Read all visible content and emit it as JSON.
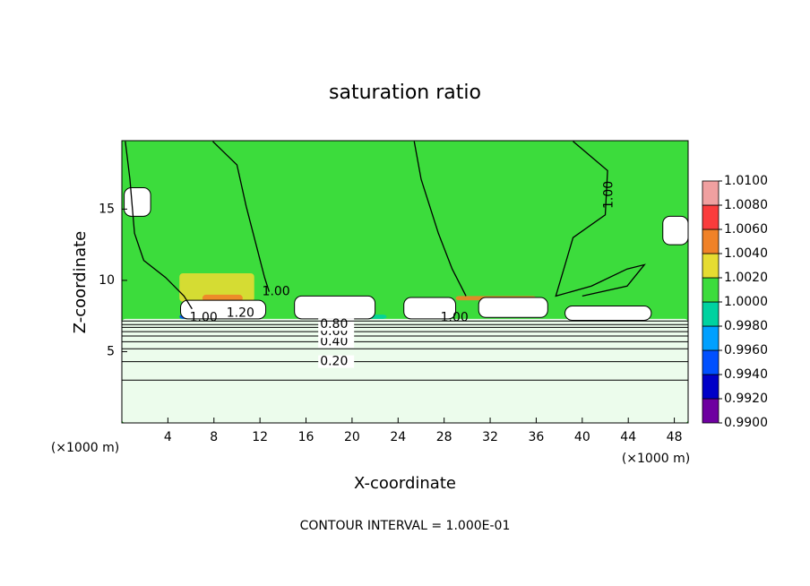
{
  "chart_data": {
    "type": "contour",
    "title": "saturation ratio",
    "x_label": "X-coordinate",
    "y_label": "Z-coordinate",
    "x_unit": "(×1000 m)",
    "footer": "CONTOUR INTERVAL = 1.000E-01",
    "xlim": [
      0,
      49.2
    ],
    "ylim": [
      0,
      19.8
    ],
    "xticks": [
      4,
      8,
      12,
      16,
      20,
      24,
      28,
      32,
      36,
      40,
      44,
      48
    ],
    "yticks": [
      5,
      10,
      15
    ],
    "background": 1.001,
    "colorbar": {
      "ticks": [
        {
          "value": 0.99,
          "label": "0.9900"
        },
        {
          "value": 0.992,
          "label": "0.9920"
        },
        {
          "value": 0.994,
          "label": "0.9940"
        },
        {
          "value": 0.996,
          "label": "0.9960"
        },
        {
          "value": 0.998,
          "label": "0.9980"
        },
        {
          "value": 1.0,
          "label": "1.0000"
        },
        {
          "value": 1.002,
          "label": "1.0020"
        },
        {
          "value": 1.004,
          "label": "1.0040"
        },
        {
          "value": 1.006,
          "label": "1.0060"
        },
        {
          "value": 1.008,
          "label": "1.0080"
        },
        {
          "value": 1.01,
          "label": "1.0100"
        }
      ],
      "colors": [
        "#6e00a0",
        "#0000c8",
        "#0050ff",
        "#00a0ff",
        "#00d2a0",
        "#3cdc3c",
        "#e6dc32",
        "#f08228",
        "#fa3c3c",
        "#f0a0a0"
      ]
    },
    "patches": [
      {
        "x0": 0,
        "x1": 49.2,
        "z0": 0,
        "z1": 7.3,
        "value": 0.5
      },
      {
        "x0": 5,
        "x1": 11.5,
        "z0": 8.5,
        "z1": 10.5,
        "value": 1.003
      },
      {
        "x0": 7,
        "x1": 10.5,
        "z0": 8.5,
        "z1": 9.0,
        "value": 1.005
      },
      {
        "x0": 29,
        "x1": 36,
        "z0": 8.6,
        "z1": 8.9,
        "value": 1.005
      },
      {
        "x0": 5,
        "x1": 8,
        "z0": 7.3,
        "z1": 7.6,
        "value": 0.995
      },
      {
        "x0": 19,
        "x1": 23,
        "z0": 7.3,
        "z1": 7.6,
        "value": 0.999
      },
      {
        "x0": 5.1,
        "x1": 12.5,
        "z0": 7.3,
        "z1": 8.6,
        "value": 1.2
      },
      {
        "x0": 15,
        "x1": 22,
        "z0": 7.3,
        "z1": 8.9,
        "value": 1.2
      },
      {
        "x0": 24.5,
        "x1": 29,
        "z0": 7.3,
        "z1": 8.8,
        "value": 1.05
      },
      {
        "x0": 31,
        "x1": 37,
        "z0": 7.4,
        "z1": 8.8,
        "value": 1.2
      },
      {
        "x0": 38.5,
        "x1": 46,
        "z0": 7.2,
        "z1": 8.2,
        "value": 1.05
      },
      {
        "x0": 0.2,
        "x1": 2.5,
        "z0": 14.5,
        "z1": 16.5,
        "value": 1.2
      },
      {
        "x0": 47,
        "x1": 49.2,
        "z0": 12.5,
        "z1": 14.5,
        "value": 1.2
      }
    ],
    "contours": [
      {
        "z": 3.0
      },
      {
        "z": 4.3,
        "label": "0.20"
      },
      {
        "z": 5.2
      },
      {
        "z": 5.7,
        "label": "0.40"
      },
      {
        "z": 6.1
      },
      {
        "z": 6.4,
        "label": "0.60"
      },
      {
        "z": 6.7
      },
      {
        "z": 6.9,
        "label": "0.80"
      },
      {
        "z": 7.15
      }
    ],
    "contour_paths": [
      {
        "x": [
          0.3,
          0.7,
          1.1,
          1.9,
          3.8,
          5.4,
          6.1
        ],
        "z": [
          19.75,
          17.1,
          13.3,
          11.4,
          10.2,
          8.9,
          8.0
        ]
      },
      {
        "x": [
          7.9,
          10.0,
          10.8,
          11.6,
          12.4,
          12.8
        ],
        "z": [
          19.75,
          18.1,
          15.2,
          12.7,
          10.2,
          9.2
        ]
      },
      {
        "x": [
          25.4,
          26.0,
          27.5,
          28.7,
          29.9
        ],
        "z": [
          19.75,
          17.1,
          13.3,
          10.8,
          8.9
        ]
      },
      {
        "x": [
          39.2,
          42.2,
          42.0,
          39.2,
          38.4,
          37.7,
          40.8,
          43.9,
          45.4,
          43.9,
          40.0
        ],
        "z": [
          19.75,
          17.7,
          14.6,
          13.0,
          10.8,
          8.9,
          9.6,
          10.8,
          11.1,
          9.6,
          8.9
        ]
      }
    ],
    "contour_labels": [
      {
        "label": "1.00",
        "x": 7.1,
        "z": 7.4
      },
      {
        "label": "1.20",
        "x": 10.3,
        "z": 7.7
      },
      {
        "label": "1.00",
        "x": 13.4,
        "z": 9.2
      },
      {
        "label": "1.00",
        "x": 28.9,
        "z": 7.4
      },
      {
        "label": "1.00",
        "x": 42.3,
        "z": 16.0,
        "vertical": true
      }
    ]
  }
}
